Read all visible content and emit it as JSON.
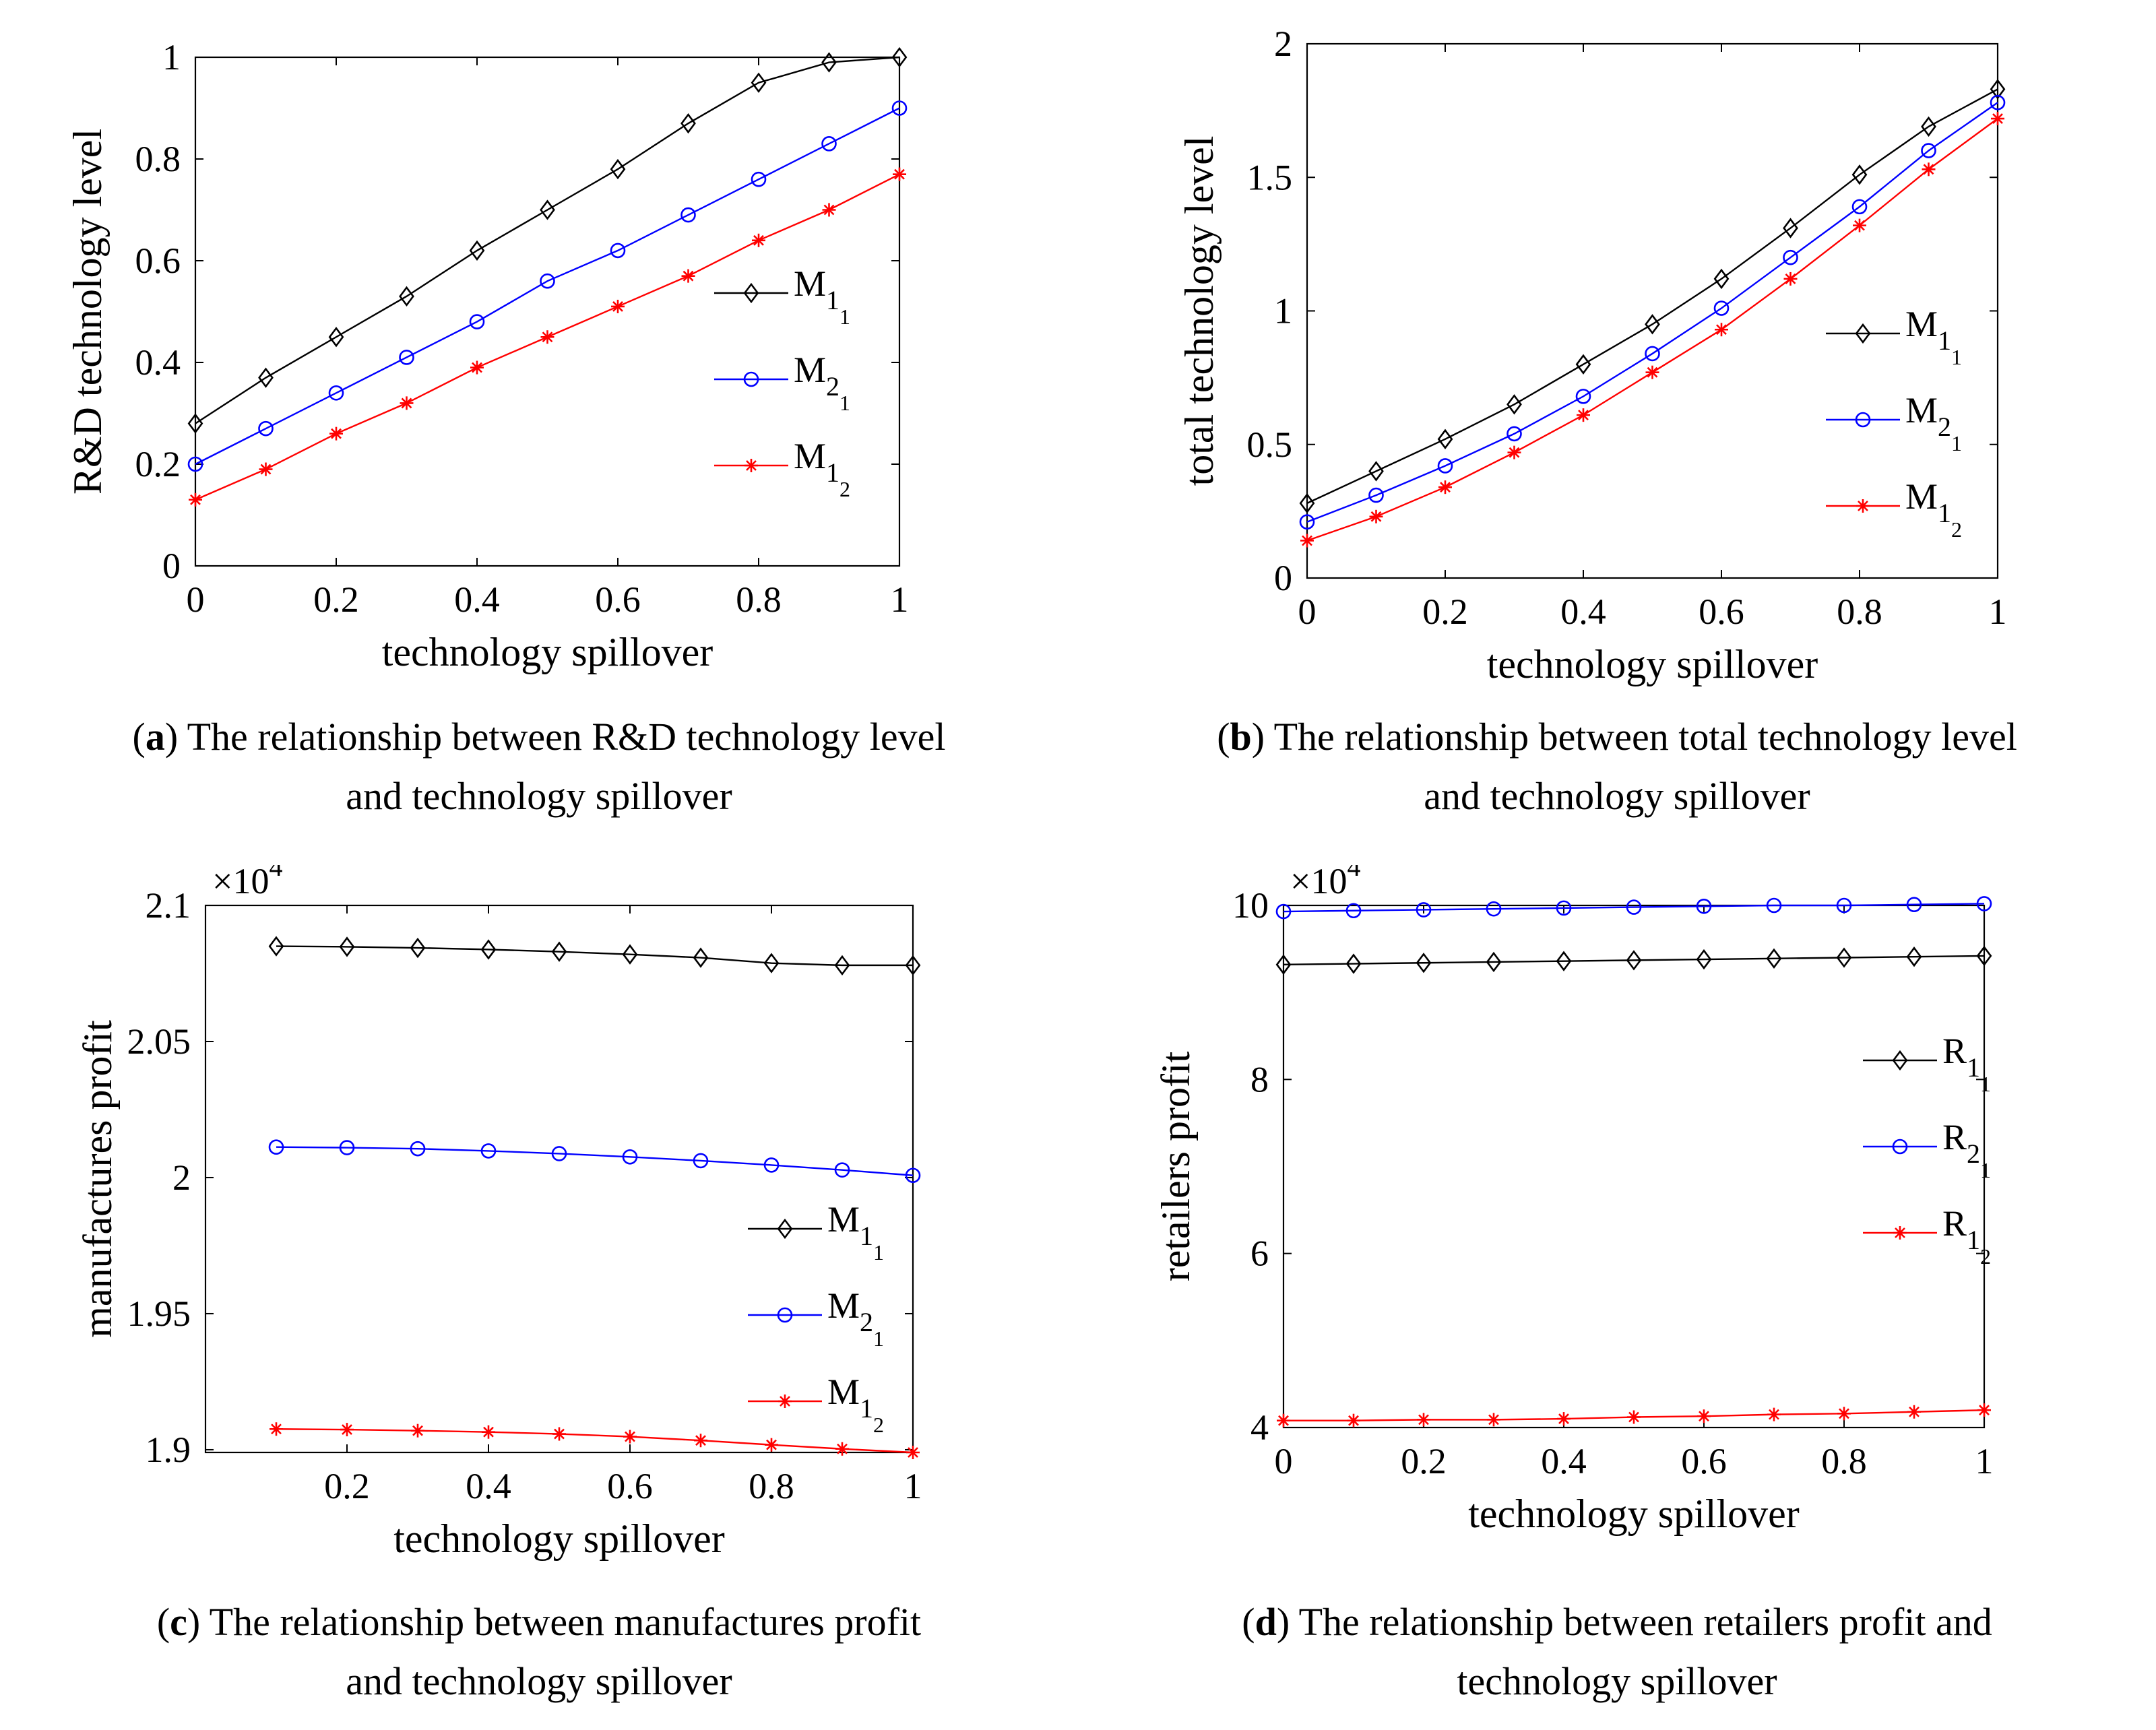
{
  "colors": {
    "black": "#000000",
    "blue": "#0000ff",
    "red": "#ff0000"
  },
  "chart_data": [
    {
      "panel_label": "a",
      "caption_line1": "The relationship between R&D technology level",
      "caption_line2": "and technology spillover",
      "type": "line",
      "xlabel": "technology spillover",
      "ylabel": "R&D technology level",
      "xlim": [
        0,
        1
      ],
      "ylim": [
        0,
        1
      ],
      "xticks": [
        0,
        0.2,
        0.4,
        0.6,
        0.8,
        1
      ],
      "xtick_labels": [
        "0",
        "0.2",
        "0.4",
        "0.6",
        "0.8",
        "1"
      ],
      "yticks": [
        0,
        0.2,
        0.4,
        0.6,
        0.8,
        1
      ],
      "ytick_labels": [
        "0",
        "0.2",
        "0.4",
        "0.6",
        "0.8",
        "1"
      ],
      "multiplier": "",
      "legend_position": "right-middle",
      "x": [
        0,
        0.1,
        0.2,
        0.3,
        0.4,
        0.5,
        0.6,
        0.7,
        0.8,
        0.9,
        1
      ],
      "series": [
        {
          "name": "M11",
          "label_main": "M",
          "label_sub1": "1",
          "label_sub2": "1",
          "color": "#000000",
          "marker": "diamond",
          "values": [
            0.28,
            0.37,
            0.45,
            0.53,
            0.62,
            0.7,
            0.78,
            0.87,
            0.95,
            0.99,
            1.0
          ]
        },
        {
          "name": "M21",
          "label_main": "M",
          "label_sub1": "2",
          "label_sub2": "1",
          "color": "#0000ff",
          "marker": "circle",
          "values": [
            0.2,
            0.27,
            0.34,
            0.41,
            0.48,
            0.56,
            0.62,
            0.69,
            0.76,
            0.83,
            0.9
          ]
        },
        {
          "name": "M12",
          "label_main": "M",
          "label_sub1": "1",
          "label_sub2": "2",
          "color": "#ff0000",
          "marker": "star",
          "values": [
            0.13,
            0.19,
            0.26,
            0.32,
            0.39,
            0.45,
            0.51,
            0.57,
            0.64,
            0.7,
            0.77
          ]
        }
      ]
    },
    {
      "panel_label": "b",
      "caption_line1": "The relationship between total technology level",
      "caption_line2": "and technology spillover",
      "type": "line",
      "xlabel": "technology spillover",
      "ylabel": "total technology level",
      "xlim": [
        0,
        1
      ],
      "ylim": [
        0,
        2
      ],
      "xticks": [
        0,
        0.2,
        0.4,
        0.6,
        0.8,
        1
      ],
      "xtick_labels": [
        "0",
        "0.2",
        "0.4",
        "0.6",
        "0.8",
        "1"
      ],
      "yticks": [
        0,
        0.5,
        1,
        1.5,
        2
      ],
      "ytick_labels": [
        "0",
        "0.5",
        "1",
        "1.5",
        "2"
      ],
      "multiplier": "",
      "legend_position": "right-middle",
      "x": [
        0,
        0.1,
        0.2,
        0.3,
        0.4,
        0.5,
        0.6,
        0.7,
        0.8,
        0.9,
        1
      ],
      "series": [
        {
          "name": "M11",
          "label_main": "M",
          "label_sub1": "1",
          "label_sub2": "1",
          "color": "#000000",
          "marker": "diamond",
          "values": [
            0.28,
            0.4,
            0.52,
            0.65,
            0.8,
            0.95,
            1.12,
            1.31,
            1.51,
            1.69,
            1.83
          ]
        },
        {
          "name": "M21",
          "label_main": "M",
          "label_sub1": "2",
          "label_sub2": "1",
          "color": "#0000ff",
          "marker": "circle",
          "values": [
            0.21,
            0.31,
            0.42,
            0.54,
            0.68,
            0.84,
            1.01,
            1.2,
            1.39,
            1.6,
            1.78
          ]
        },
        {
          "name": "M12",
          "label_main": "M",
          "label_sub1": "1",
          "label_sub2": "2",
          "color": "#ff0000",
          "marker": "star",
          "values": [
            0.14,
            0.23,
            0.34,
            0.47,
            0.61,
            0.77,
            0.93,
            1.12,
            1.32,
            1.53,
            1.72
          ]
        }
      ]
    },
    {
      "panel_label": "c",
      "caption_line1": "The relationship between manufactures profit",
      "caption_line2": "and technology spillover",
      "type": "line",
      "xlabel": "technology spillover",
      "ylabel": "manufactures profit",
      "xlim": [
        0,
        1
      ],
      "ylim": [
        1.899,
        2.1
      ],
      "xticks": [
        0.2,
        0.4,
        0.6,
        0.8,
        1
      ],
      "xtick_labels": [
        "0.2",
        "0.4",
        "0.6",
        "0.8",
        "1"
      ],
      "yticks": [
        1.9,
        1.95,
        2,
        2.05,
        2.1
      ],
      "ytick_labels": [
        "1.9",
        "1.95",
        "2",
        "2.05",
        "2.1"
      ],
      "multiplier": "×10",
      "multiplier_exp": "4",
      "legend_position": "right-lower",
      "x": [
        0.1,
        0.2,
        0.3,
        0.4,
        0.5,
        0.6,
        0.7,
        0.8,
        0.9,
        1
      ],
      "series": [
        {
          "name": "M11",
          "label_main": "M",
          "label_sub1": "1",
          "label_sub2": "1",
          "color": "#000000",
          "marker": "diamond",
          "values": [
            2.085,
            2.0848,
            2.0844,
            2.0838,
            2.083,
            2.082,
            2.0808,
            2.0788,
            2.078,
            2.078
          ]
        },
        {
          "name": "M21",
          "label_main": "M",
          "label_sub1": "2",
          "label_sub2": "1",
          "color": "#0000ff",
          "marker": "circle",
          "values": [
            2.0112,
            2.011,
            2.0106,
            2.0098,
            2.0088,
            2.0076,
            2.0062,
            2.0046,
            2.0028,
            2.0008
          ]
        },
        {
          "name": "M12",
          "label_main": "M",
          "label_sub1": "1",
          "label_sub2": "2",
          "color": "#ff0000",
          "marker": "star",
          "values": [
            1.9076,
            1.9074,
            1.907,
            1.9065,
            1.9058,
            1.9048,
            1.9034,
            1.9018,
            1.9003,
            1.899
          ]
        }
      ]
    },
    {
      "panel_label": "d",
      "caption_line1": "The relationship between retailers profit and",
      "caption_line2": "technology spillover",
      "type": "line",
      "xlabel": "technology spillover",
      "ylabel": "retailers profit",
      "xlim": [
        0,
        1
      ],
      "ylim": [
        4,
        10
      ],
      "xticks": [
        0,
        0.2,
        0.4,
        0.6,
        0.8,
        1
      ],
      "xtick_labels": [
        "0",
        "0.2",
        "0.4",
        "0.6",
        "0.8",
        "1"
      ],
      "yticks": [
        4,
        6,
        8,
        10
      ],
      "ytick_labels": [
        "4",
        "6",
        "8",
        "10"
      ],
      "multiplier": "×10",
      "multiplier_exp": "4",
      "legend_position": "right-middle",
      "x": [
        0,
        0.1,
        0.2,
        0.3,
        0.4,
        0.5,
        0.6,
        0.7,
        0.8,
        0.9,
        1
      ],
      "series": [
        {
          "name": "R11",
          "label_main": "R",
          "label_sub1": "1",
          "label_sub2": "1",
          "color": "#000000",
          "marker": "diamond",
          "values": [
            9.32,
            9.33,
            9.34,
            9.35,
            9.36,
            9.37,
            9.38,
            9.39,
            9.4,
            9.41,
            9.42
          ]
        },
        {
          "name": "R21",
          "label_main": "R",
          "label_sub1": "2",
          "label_sub2": "1",
          "color": "#0000ff",
          "marker": "circle",
          "values": [
            9.93,
            9.94,
            9.95,
            9.96,
            9.97,
            9.98,
            9.99,
            10.0,
            10.0,
            10.01,
            10.02
          ]
        },
        {
          "name": "R12",
          "label_main": "R",
          "label_sub1": "1",
          "label_sub2": "2",
          "color": "#ff0000",
          "marker": "star",
          "values": [
            4.08,
            4.08,
            4.09,
            4.09,
            4.1,
            4.12,
            4.13,
            4.15,
            4.16,
            4.18,
            4.2
          ]
        }
      ]
    }
  ]
}
